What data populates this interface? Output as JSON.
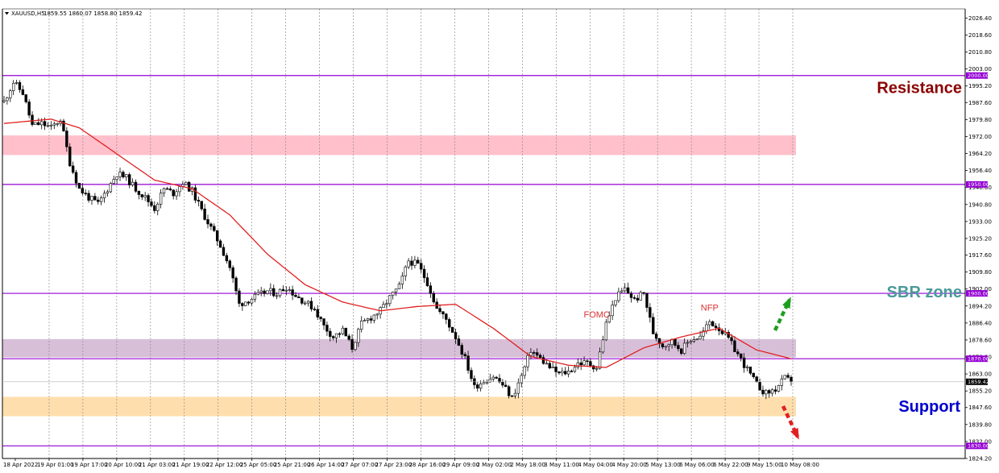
{
  "header": {
    "symbol": "XAUUSD,H5",
    "ohlc": "1859.55 1860.07 1858.80 1859.42"
  },
  "chart_data": {
    "type": "candlestick",
    "ylim": [
      1824.2,
      2030.6
    ],
    "y_ticks": [
      "2026.40",
      "2018.60",
      "2010.80",
      "2003.00",
      "1995.20",
      "1987.60",
      "1979.80",
      "1972.00",
      "1964.20",
      "1956.40",
      "1948.60",
      "1940.80",
      "1933.00",
      "1925.20",
      "1917.60",
      "1909.80",
      "1902.00",
      "1894.20",
      "1886.40",
      "1878.60",
      "1870.80",
      "1863.00",
      "1855.20",
      "1847.60",
      "1839.80",
      "1832.00",
      "1824.20"
    ],
    "x_labels": [
      "18 Apr 2022",
      "19 Apr 01:00",
      "19 Apr 17:00",
      "20 Apr 10:00",
      "21 Apr 03:00",
      "21 Apr 19:00",
      "22 Apr 12:00",
      "25 Apr 05:00",
      "25 Apr 21:00",
      "26 Apr 14:00",
      "27 Apr 07:00",
      "27 Apr 23:00",
      "28 Apr 16:00",
      "29 Apr 09:00",
      "2 May 02:00",
      "2 May 18:00",
      "3 May 11:00",
      "4 May 04:00",
      "4 May 20:00",
      "5 May 13:00",
      "6 May 06:00",
      "6 May 22:00",
      "9 May 15:00",
      "10 May 08:00"
    ],
    "price_path": [
      [
        0,
        1988
      ],
      [
        3,
        1997
      ],
      [
        6,
        1992
      ],
      [
        9,
        1977
      ],
      [
        12,
        1978
      ],
      [
        15,
        1976
      ],
      [
        18,
        1980
      ],
      [
        21,
        1960
      ],
      [
        24,
        1948
      ],
      [
        27,
        1944
      ],
      [
        30,
        1941
      ],
      [
        33,
        1948
      ],
      [
        36,
        1955
      ],
      [
        39,
        1953
      ],
      [
        42,
        1948
      ],
      [
        45,
        1944
      ],
      [
        48,
        1939
      ],
      [
        51,
        1948
      ],
      [
        54,
        1946
      ],
      [
        57,
        1951
      ],
      [
        60,
        1947
      ],
      [
        63,
        1938
      ],
      [
        66,
        1930
      ],
      [
        69,
        1922
      ],
      [
        72,
        1912
      ],
      [
        75,
        1895
      ],
      [
        78,
        1897
      ],
      [
        81,
        1899
      ],
      [
        84,
        1901
      ],
      [
        87,
        1900
      ],
      [
        90,
        1903
      ],
      [
        93,
        1899
      ],
      [
        96,
        1896
      ],
      [
        99,
        1893
      ],
      [
        102,
        1885
      ],
      [
        105,
        1880
      ],
      [
        108,
        1883
      ],
      [
        111,
        1875
      ],
      [
        114,
        1886
      ],
      [
        117,
        1889
      ],
      [
        120,
        1892
      ],
      [
        123,
        1898
      ],
      [
        126,
        1903
      ],
      [
        129,
        1915
      ],
      [
        132,
        1913
      ],
      [
        135,
        1905
      ],
      [
        138,
        1893
      ],
      [
        141,
        1888
      ],
      [
        144,
        1880
      ],
      [
        147,
        1870
      ],
      [
        150,
        1857
      ],
      [
        153,
        1860
      ],
      [
        156,
        1862
      ],
      [
        159,
        1858
      ],
      [
        162,
        1852
      ],
      [
        165,
        1862
      ],
      [
        168,
        1874
      ],
      [
        171,
        1870
      ],
      [
        174,
        1866
      ],
      [
        177,
        1863
      ],
      [
        180,
        1864
      ],
      [
        183,
        1868
      ],
      [
        186,
        1868
      ],
      [
        189,
        1866
      ],
      [
        192,
        1886
      ],
      [
        195,
        1898
      ],
      [
        198,
        1902
      ],
      [
        201,
        1897
      ],
      [
        204,
        1900
      ],
      [
        207,
        1882
      ],
      [
        210,
        1876
      ],
      [
        213,
        1878
      ],
      [
        216,
        1874
      ],
      [
        219,
        1879
      ],
      [
        222,
        1880
      ],
      [
        225,
        1887
      ],
      [
        228,
        1884
      ],
      [
        231,
        1879
      ],
      [
        234,
        1872
      ],
      [
        237,
        1865
      ],
      [
        240,
        1858
      ],
      [
        243,
        1854
      ],
      [
        246,
        1856
      ],
      [
        249,
        1861
      ],
      [
        251,
        1859.4
      ]
    ],
    "ma_path": [
      [
        0,
        1978
      ],
      [
        15,
        1980
      ],
      [
        24,
        1976
      ],
      [
        36,
        1964
      ],
      [
        48,
        1952
      ],
      [
        60,
        1948
      ],
      [
        72,
        1936
      ],
      [
        84,
        1918
      ],
      [
        96,
        1904
      ],
      [
        108,
        1896
      ],
      [
        120,
        1892
      ],
      [
        132,
        1894
      ],
      [
        144,
        1895
      ],
      [
        156,
        1884
      ],
      [
        168,
        1871
      ],
      [
        180,
        1867
      ],
      [
        192,
        1866
      ],
      [
        204,
        1875
      ],
      [
        216,
        1880
      ],
      [
        228,
        1884
      ],
      [
        240,
        1874
      ],
      [
        251,
        1870
      ]
    ],
    "current_price": 1859.42,
    "levels": [
      {
        "price": 2000.0,
        "label": "2000.00"
      },
      {
        "price": 1950.0,
        "label": "1950.00"
      },
      {
        "price": 1900.0,
        "label": "1900.00"
      },
      {
        "price": 1870.0,
        "label": "1870.00"
      },
      {
        "price": 1830.0,
        "label": "1830.00"
      }
    ],
    "zones": [
      {
        "from": 1963.5,
        "to": 1972.5,
        "color": "#ffc0cb"
      },
      {
        "from": 1870.6,
        "to": 1879.0,
        "color": "#d8bfd8"
      },
      {
        "from": 1843.6,
        "to": 1852.5,
        "color": "#ffdead"
      }
    ],
    "annotations": [
      {
        "text": "Resistance",
        "color": "#8b0000"
      },
      {
        "text": "SBR zone",
        "color": "#4a9a9a"
      },
      {
        "text": "Support",
        "color": "#0000cd"
      }
    ],
    "events": [
      {
        "text": "FOMC",
        "at": 189,
        "price": 1889
      },
      {
        "text": "NFP",
        "at": 225,
        "price": 1892
      }
    ],
    "colors": {
      "up": "#ffffff",
      "down": "#000000",
      "wick": "#000000",
      "ma": "#e02020",
      "level": "#9400d3",
      "grid": "#808080",
      "arrow_up": "#1e9e1e",
      "arrow_down": "#e02020"
    }
  }
}
